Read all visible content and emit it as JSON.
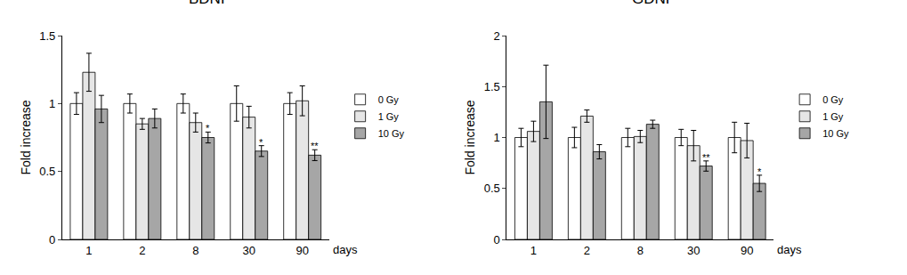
{
  "chart_data": [
    {
      "type": "bar",
      "title": "BDNF",
      "y_label": "Fold increase",
      "x_label": "days",
      "categories": [
        "1",
        "2",
        "8",
        "30",
        "90"
      ],
      "series": [
        {
          "name": "0 Gy",
          "color": "#ffffff",
          "values": [
            1,
            1,
            1,
            1,
            1
          ],
          "errors": [
            0.08,
            0.07,
            0.07,
            0.13,
            0.08
          ]
        },
        {
          "name": "1 Gy",
          "color": "#e6e6e6",
          "values": [
            1.23,
            0.85,
            0.86,
            0.9,
            1.02
          ],
          "errors": [
            0.14,
            0.04,
            0.07,
            0.08,
            0.11
          ]
        },
        {
          "name": "10 Gy",
          "color": "#a6a6a6",
          "values": [
            0.96,
            0.89,
            0.75,
            0.65,
            0.62
          ],
          "errors": [
            0.1,
            0.07,
            0.04,
            0.04,
            0.04
          ]
        }
      ],
      "ylim": [
        0,
        1.5
      ],
      "yticks": [
        0,
        0.5,
        1,
        1.5
      ],
      "grid": false,
      "legend": "right",
      "annotations": [
        {
          "category": "8",
          "series": "10 Gy",
          "text": "*"
        },
        {
          "category": "30",
          "series": "10 Gy",
          "text": "*"
        },
        {
          "category": "90",
          "series": "10 Gy",
          "text": "**"
        }
      ]
    },
    {
      "type": "bar",
      "title": "GDNF",
      "y_label": "Fold increase",
      "x_label": "days",
      "categories": [
        "1",
        "2",
        "8",
        "30",
        "90"
      ],
      "series": [
        {
          "name": "0 Gy",
          "color": "#ffffff",
          "values": [
            1,
            1,
            1,
            1,
            1
          ],
          "errors": [
            0.09,
            0.1,
            0.09,
            0.08,
            0.15
          ]
        },
        {
          "name": "1 Gy",
          "color": "#e6e6e6",
          "values": [
            1.06,
            1.21,
            1.01,
            0.92,
            0.97
          ],
          "errors": [
            0.1,
            0.06,
            0.06,
            0.15,
            0.17
          ]
        },
        {
          "name": "10 Gy",
          "color": "#a6a6a6",
          "values": [
            1.35,
            0.86,
            1.13,
            0.72,
            0.55
          ],
          "errors": [
            0.36,
            0.07,
            0.04,
            0.05,
            0.08
          ]
        }
      ],
      "ylim": [
        0,
        2
      ],
      "yticks": [
        0,
        0.5,
        1,
        1.5,
        2
      ],
      "grid": false,
      "legend": "right",
      "annotations": [
        {
          "category": "30",
          "series": "10 Gy",
          "text": "**"
        },
        {
          "category": "90",
          "series": "10 Gy",
          "text": "*"
        }
      ]
    }
  ]
}
